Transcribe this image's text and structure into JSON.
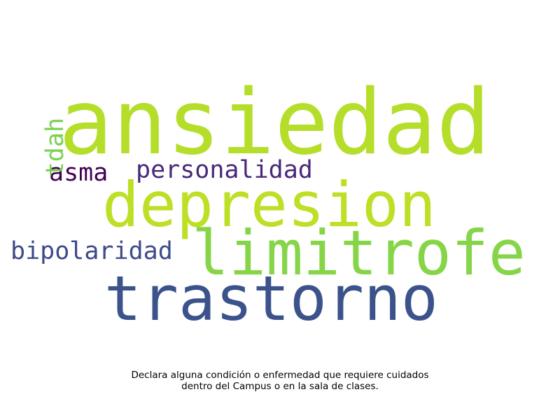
{
  "caption": {
    "line1": "Declara alguna condición o enfermedad que requiere cuidados",
    "line2": "dentro del Campus o en la sala de clases."
  },
  "words": {
    "ansiedad": "ansiedad",
    "depresion": "depresion",
    "limitrofe": "limitrofe",
    "trastorno": "trastorno",
    "personalidad": "personalidad",
    "asma": "asma",
    "bipolaridad": "bipolaridad",
    "tdah": "tdah"
  },
  "colors": {
    "ansiedad": "#b5de2b",
    "depresion": "#bddf26",
    "limitrofe": "#86d549",
    "trastorno": "#3b528b",
    "personalidad": "#482878",
    "asma": "#440154",
    "bipolaridad": "#3e4a89",
    "tdah": "#7ad151"
  }
}
